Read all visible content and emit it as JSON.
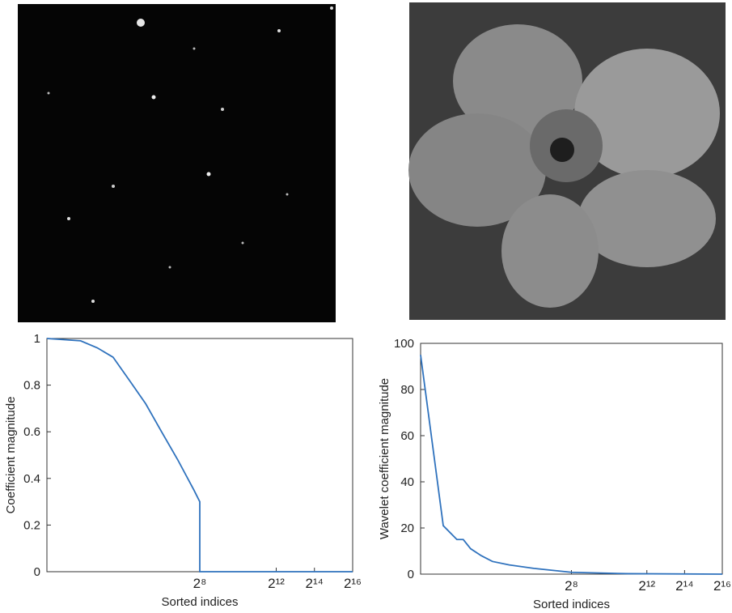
{
  "chart_data": [
    {
      "type": "line",
      "xscale": "log",
      "xlabel": "Sorted indices",
      "ylabel": "Coefficient magnitude",
      "x": [
        1,
        3.4,
        6.2,
        11,
        20,
        36,
        64,
        115,
        207,
        256,
        256,
        65536
      ],
      "series": [
        {
          "color": "#2f72bd",
          "values": [
            1,
            0.99,
            0.96,
            0.92,
            0.82,
            0.72,
            0.6,
            0.48,
            0.35,
            0.3,
            0,
            0
          ]
        }
      ],
      "xlim": [
        1,
        65536
      ],
      "ylim": [
        0,
        1
      ],
      "xticks": [
        {
          "value": 256,
          "label": "2⁸"
        },
        {
          "value": 4096,
          "label": "2¹²"
        },
        {
          "value": 16384,
          "label": "2¹⁴"
        },
        {
          "value": 65536,
          "label": "2¹⁶"
        }
      ],
      "yticks": [
        0,
        0.2,
        0.4,
        0.6,
        0.8,
        1
      ]
    },
    {
      "type": "line",
      "xscale": "log",
      "xlabel": "Sorted indices",
      "ylabel": "Wavelet coefficient magnitude",
      "x": [
        1,
        2.3,
        3.8,
        4.8,
        6.3,
        9.3,
        14,
        26,
        64,
        256,
        2000,
        65536
      ],
      "series": [
        {
          "color": "#2f72bd",
          "values": [
            95,
            21,
            15,
            15,
            11,
            8,
            5.5,
            4,
            2.5,
            0.8,
            0.2,
            0
          ]
        }
      ],
      "xlim": [
        1,
        65536
      ],
      "ylim": [
        0,
        100
      ],
      "xticks": [
        {
          "value": 256,
          "label": "2⁸"
        },
        {
          "value": 4096,
          "label": "2¹²"
        },
        {
          "value": 16384,
          "label": "2¹⁴"
        },
        {
          "value": 65536,
          "label": "2¹⁶"
        }
      ],
      "yticks": [
        0,
        20,
        40,
        60,
        80,
        100
      ]
    }
  ]
}
